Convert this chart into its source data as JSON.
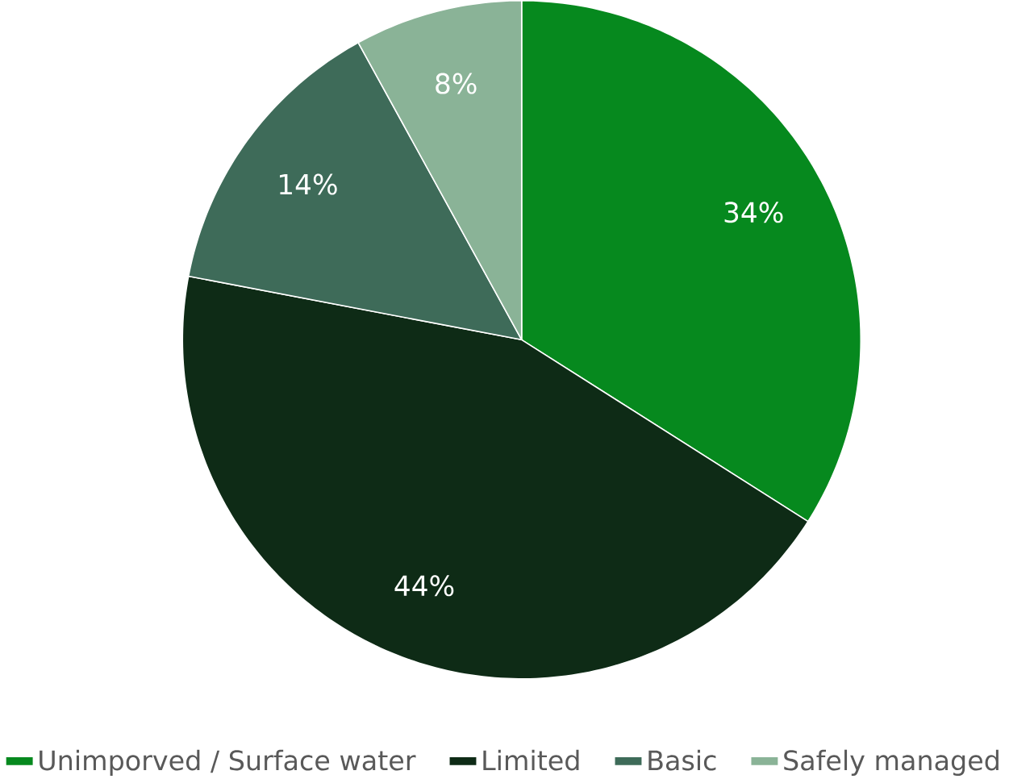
{
  "chart_data": {
    "type": "pie",
    "categories": [
      "Unimporved / Surface water",
      "Limited",
      "Basic",
      "Safely managed"
    ],
    "values": [
      34,
      44,
      14,
      8
    ],
    "value_labels": [
      "34%",
      "44%",
      "14%",
      "8%"
    ],
    "colors": [
      "#06891e",
      "#0e2b16",
      "#3e6b59",
      "#8ab397"
    ],
    "legend": "bottom"
  }
}
